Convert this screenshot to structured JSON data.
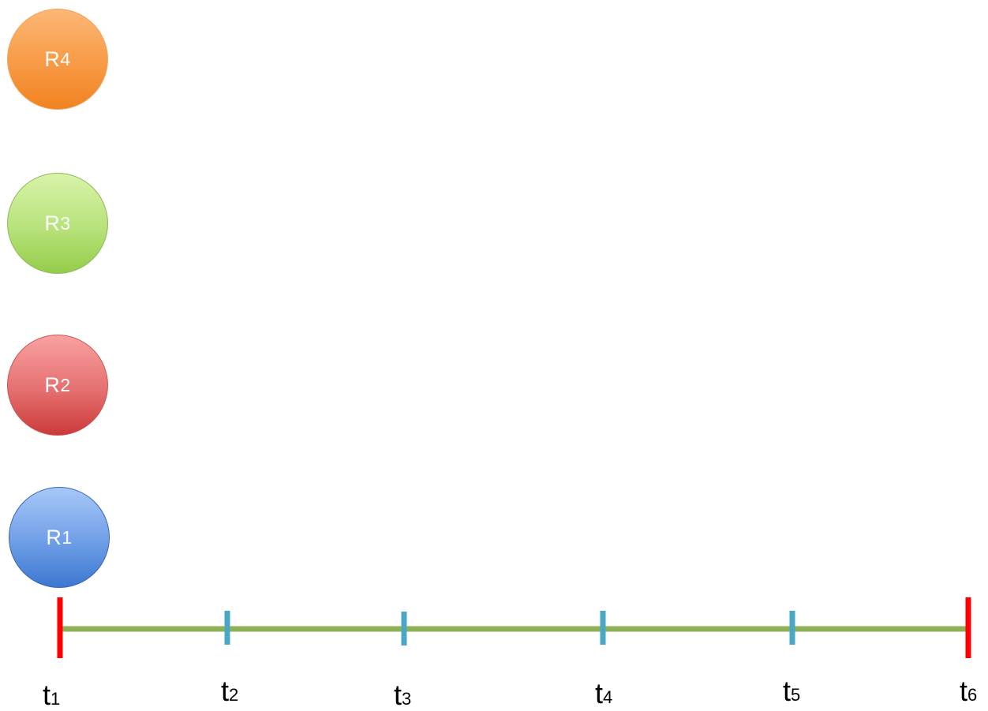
{
  "nodes": [
    {
      "id": "r4",
      "base": "R",
      "sub": "4",
      "color": "#f89a45"
    },
    {
      "id": "r3",
      "base": "R",
      "sub": "3",
      "color": "#b7e27a"
    },
    {
      "id": "r2",
      "base": "R",
      "sub": "2",
      "color": "#e57070"
    },
    {
      "id": "r1",
      "base": "R",
      "sub": "1",
      "color": "#6e9ee6"
    }
  ],
  "timeline": {
    "line_color": "#8db255",
    "end_tick_color": "#ff0000",
    "inner_tick_color": "#4aa8c5",
    "labels": [
      {
        "base": "t",
        "sub": "1"
      },
      {
        "base": "t",
        "sub": "2"
      },
      {
        "base": "t",
        "sub": "3"
      },
      {
        "base": "t",
        "sub": "4"
      },
      {
        "base": "t",
        "sub": "5"
      },
      {
        "base": "t",
        "sub": "6"
      }
    ]
  }
}
